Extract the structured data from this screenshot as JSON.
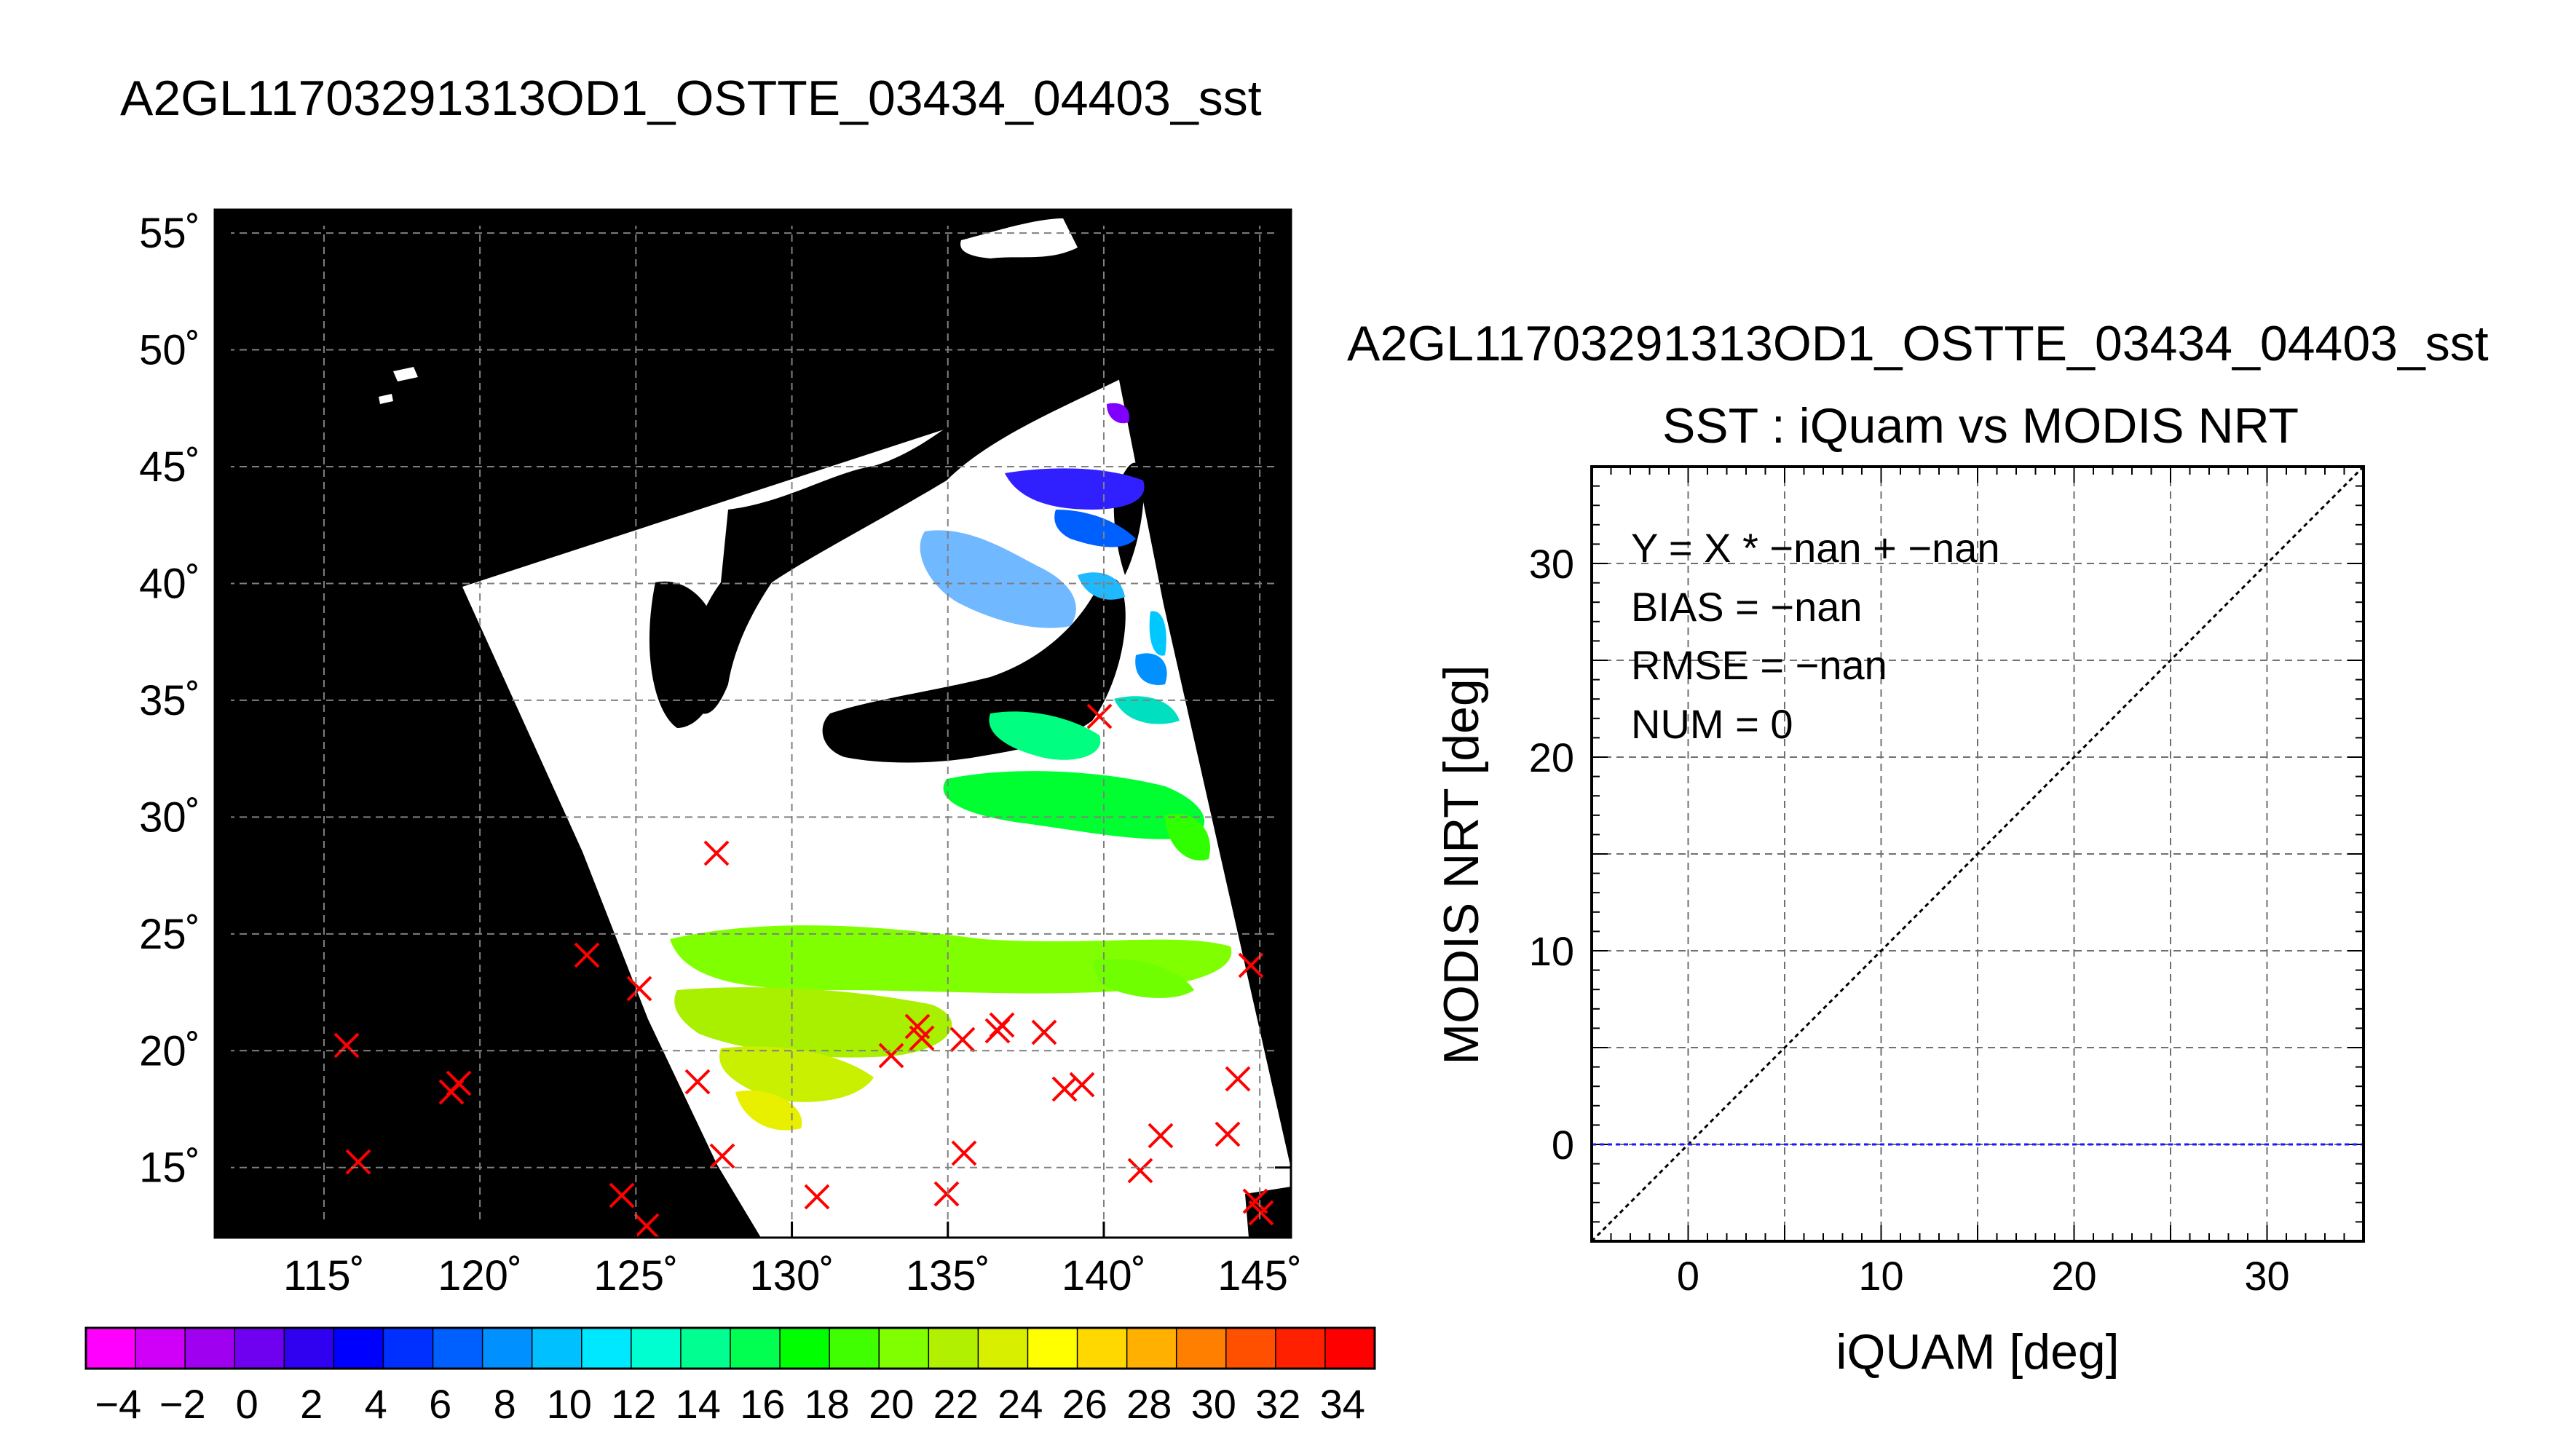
{
  "map": {
    "title": "A2GL11703291313OD1_OSTTE_03434_04403_sst",
    "lon_ticks": [
      "115˚",
      "120˚",
      "125˚",
      "130˚",
      "135˚",
      "140˚",
      "145˚"
    ],
    "lat_ticks": [
      "55˚",
      "50˚",
      "45˚",
      "40˚",
      "35˚",
      "30˚",
      "25˚",
      "20˚",
      "15˚"
    ],
    "lon_range": [
      111.5,
      146
    ],
    "lat_range": [
      12,
      56
    ],
    "land_color": "#000000",
    "ocean_missing_color": "#ffffff",
    "buoy_marker_color": "#ff0000"
  },
  "colorbar": {
    "labels": [
      "−4",
      "−2",
      "0",
      "2",
      "4",
      "6",
      "8",
      "10",
      "12",
      "14",
      "16",
      "18",
      "20",
      "22",
      "24",
      "26",
      "28",
      "30",
      "32",
      "34"
    ],
    "range": [
      -5,
      35
    ],
    "colors": [
      "#ff00ff",
      "#d000f8",
      "#a000f0",
      "#7000f0",
      "#3000f0",
      "#0000ff",
      "#0030ff",
      "#0060ff",
      "#0090ff",
      "#00c0ff",
      "#00e8ff",
      "#00ffd0",
      "#00ff90",
      "#00ff50",
      "#00ff00",
      "#40ff00",
      "#80ff00",
      "#b0f000",
      "#d8f000",
      "#ffff00",
      "#ffd800",
      "#ffb000",
      "#ff8000",
      "#ff5000",
      "#ff2000",
      "#ff0000"
    ]
  },
  "scatter": {
    "title_file": "A2GL11703291313OD1_OSTTE_03434_04403_sst",
    "title": "SST : iQuam vs MODIS NRT",
    "stats": {
      "fit": "Y = X * −nan + −nan",
      "bias": "BIAS = −nan",
      "rmse": "RMSE = −nan",
      "num": "NUM = 0"
    }
  },
  "chart_data": {
    "type": "scatter",
    "title": "SST : iQuam vs MODIS NRT",
    "xlabel": "iQUAM [deg]",
    "ylabel": "MODIS NRT [deg]",
    "xlim": [
      -5,
      35
    ],
    "ylim": [
      -5,
      35
    ],
    "xticks": [
      0,
      10,
      20,
      30
    ],
    "yticks": [
      0,
      10,
      20,
      30
    ],
    "grid": true,
    "points": [],
    "reference_lines": [
      {
        "kind": "one-to-one",
        "color": "#000000",
        "from": [
          -5,
          -5
        ],
        "to": [
          35,
          35
        ]
      },
      {
        "kind": "fit",
        "color": "#1a1aff",
        "y": 0
      }
    ]
  }
}
